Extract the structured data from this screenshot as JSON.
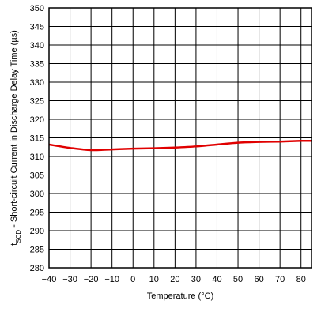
{
  "chart_data": {
    "type": "line",
    "title": "",
    "xlabel": "Temperature (°C)",
    "ylabel_main": "t",
    "ylabel_sub": "SCD",
    "ylabel_rest": " - Short-circuit Current in Discharge Delay Time (µs)",
    "xlim": [
      -40,
      85
    ],
    "ylim": [
      280,
      350
    ],
    "x_ticks": [
      -40,
      -30,
      -20,
      -10,
      0,
      10,
      20,
      30,
      40,
      50,
      60,
      70,
      80
    ],
    "x_tick_labels": [
      "−40",
      "−30",
      "−20",
      "−10",
      "0",
      "10",
      "20",
      "30",
      "40",
      "50",
      "60",
      "70",
      "80"
    ],
    "y_ticks": [
      280,
      285,
      290,
      295,
      300,
      305,
      310,
      315,
      320,
      325,
      330,
      335,
      340,
      345,
      350
    ],
    "grid": true,
    "series": [
      {
        "color": "#e00000",
        "x": [
          -40,
          -30,
          -20,
          -10,
          0,
          10,
          20,
          30,
          40,
          50,
          60,
          70,
          80,
          85
        ],
        "y": [
          313.2,
          312.3,
          311.7,
          311.9,
          312.1,
          312.2,
          312.4,
          312.7,
          313.2,
          313.7,
          313.9,
          314.0,
          314.2,
          314.2
        ]
      }
    ]
  }
}
